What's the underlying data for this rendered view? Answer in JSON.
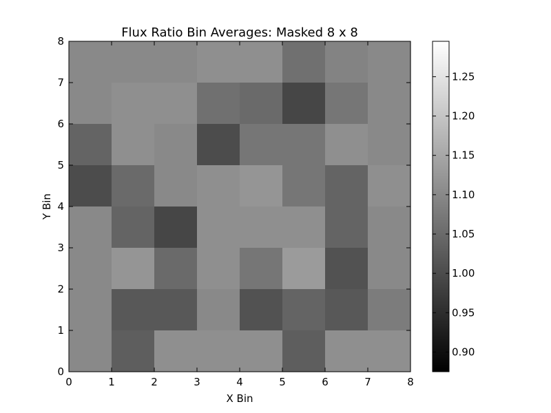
{
  "chart_data": {
    "type": "heatmap",
    "title": "Flux Ratio Bin Averages: Masked 8 x 8",
    "xlabel": "X Bin",
    "ylabel": "Y Bin",
    "xlim": [
      0,
      8
    ],
    "ylim": [
      0,
      8
    ],
    "x_ticks": [
      "0",
      "1",
      "2",
      "3",
      "4",
      "5",
      "6",
      "7",
      "8"
    ],
    "y_ticks": [
      "0",
      "1",
      "2",
      "3",
      "4",
      "5",
      "6",
      "7",
      "8"
    ],
    "colormap": "gray",
    "color_range": [
      0.875,
      1.295
    ],
    "colorbar_ticks": [
      "0.90",
      "0.95",
      "1.00",
      "1.05",
      "1.10",
      "1.15",
      "1.20",
      "1.25"
    ],
    "colorbar_tick_values": [
      0.9,
      0.95,
      1.0,
      1.05,
      1.1,
      1.15,
      1.2,
      1.25
    ],
    "grid": false,
    "rows_top_to_bottom": [
      [
        1.1,
        1.1,
        1.1,
        1.11,
        1.11,
        1.06,
        1.09,
        1.1
      ],
      [
        1.1,
        1.11,
        1.11,
        1.06,
        1.05,
        0.99,
        1.07,
        1.1
      ],
      [
        1.04,
        1.11,
        1.1,
        1.0,
        1.07,
        1.07,
        1.11,
        1.1
      ],
      [
        1.0,
        1.05,
        1.1,
        1.11,
        1.12,
        1.07,
        1.04,
        1.11
      ],
      [
        1.1,
        1.04,
        0.99,
        1.11,
        1.11,
        1.11,
        1.04,
        1.1
      ],
      [
        1.1,
        1.12,
        1.05,
        1.11,
        1.07,
        1.13,
        1.01,
        1.1
      ],
      [
        1.1,
        1.02,
        1.02,
        1.1,
        1.01,
        1.04,
        1.02,
        1.08
      ],
      [
        1.1,
        1.03,
        1.11,
        1.11,
        1.11,
        1.03,
        1.11,
        1.11
      ]
    ]
  }
}
